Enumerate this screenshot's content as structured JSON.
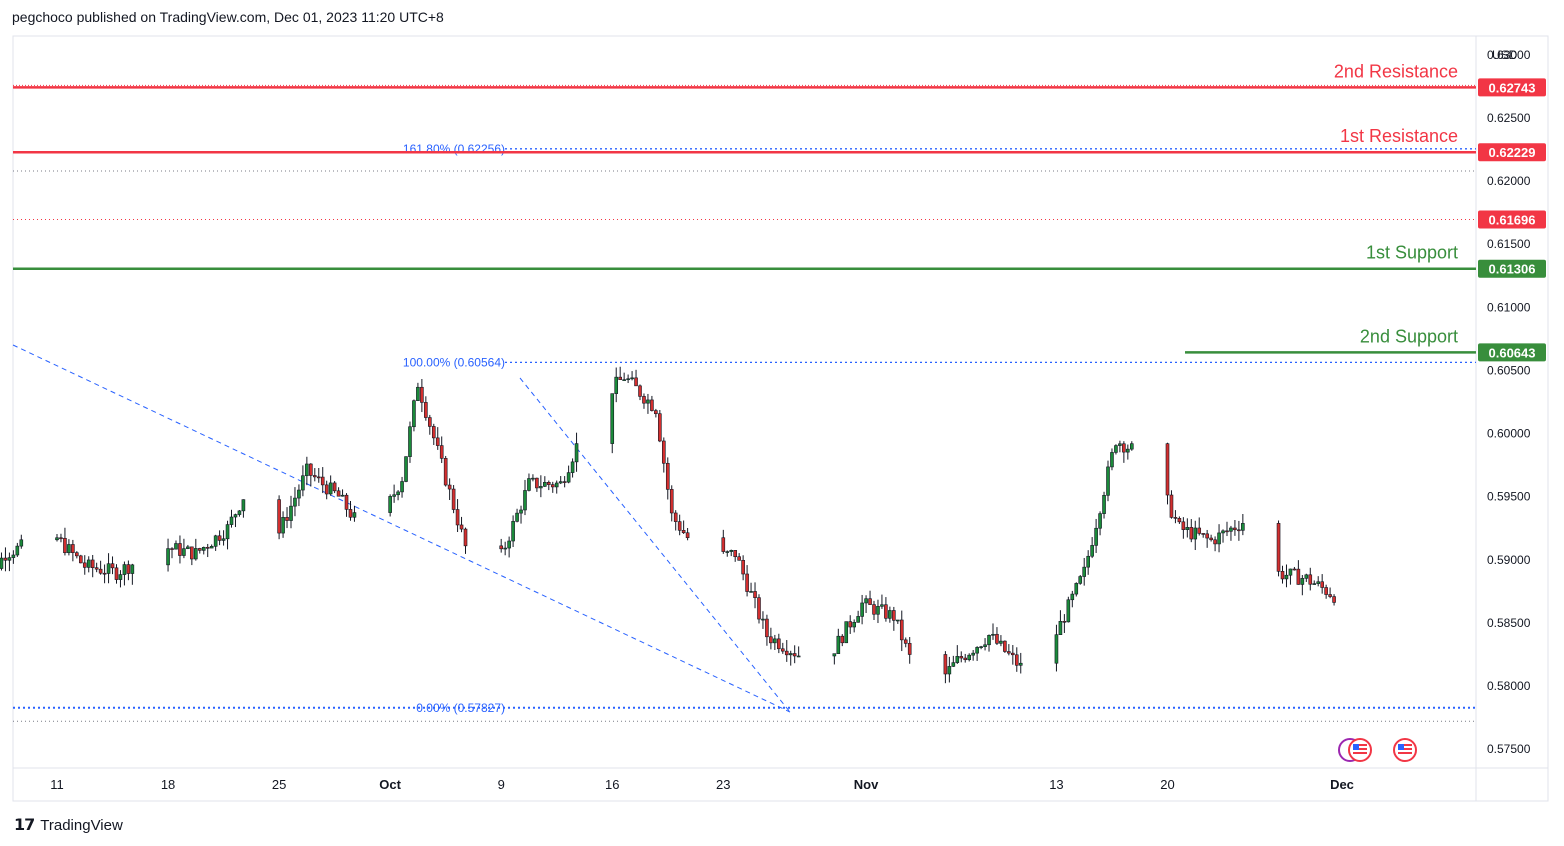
{
  "header": {
    "text": "pegchoco published on TradingView.com, Dec 01, 2023 11:20 UTC+8"
  },
  "footer": {
    "brand": "TradingView",
    "logo_icon": "tradingview-logo-icon"
  },
  "chart_data": {
    "type": "candlestick",
    "currency": "USD",
    "ylim": [
      0.5735,
      0.6315
    ],
    "y_ticks": [
      "0.63000",
      "0.62500",
      "0.62000",
      "0.61500",
      "0.61000",
      "0.60500",
      "0.60000",
      "0.59500",
      "0.59000",
      "0.58500",
      "0.58000",
      "0.57500"
    ],
    "y_tick_values": [
      0.63,
      0.625,
      0.62,
      0.615,
      0.61,
      0.605,
      0.6,
      0.595,
      0.59,
      0.585,
      0.58,
      0.575
    ],
    "x_ticks": [
      {
        "label": "11",
        "date": "2023-09-11",
        "bold": false
      },
      {
        "label": "18",
        "date": "2023-09-18",
        "bold": false
      },
      {
        "label": "25",
        "date": "2023-09-25",
        "bold": false
      },
      {
        "label": "Oct",
        "date": "2023-10-02",
        "bold": true
      },
      {
        "label": "9",
        "date": "2023-10-09",
        "bold": false
      },
      {
        "label": "16",
        "date": "2023-10-16",
        "bold": false
      },
      {
        "label": "23",
        "date": "2023-10-23",
        "bold": false
      },
      {
        "label": "Nov",
        "date": "2023-11-01",
        "bold": true
      },
      {
        "label": "13",
        "date": "2023-11-13",
        "bold": false
      },
      {
        "label": "20",
        "date": "2023-11-20",
        "bold": false
      },
      {
        "label": "Dec",
        "date": "2023-12-01",
        "bold": true
      }
    ],
    "levels": [
      {
        "name": "2nd Resistance",
        "value": 0.62743,
        "label": "0.62743",
        "color": "#f23645"
      },
      {
        "name": "1st Resistance",
        "value": 0.62229,
        "label": "0.62229",
        "color": "#f23645"
      },
      {
        "name": "1st Support",
        "value": 0.61306,
        "label": "0.61306",
        "color": "#388e3c"
      },
      {
        "name": "2nd Support",
        "value": 0.60643,
        "label": "0.60643",
        "color": "#388e3c"
      }
    ],
    "current_price": {
      "value": 0.61696,
      "label": "0.61696",
      "color": "#f23645"
    },
    "fibonacci": [
      {
        "label": "161.80% (0.62256)",
        "value": 0.62256
      },
      {
        "label": "100.00% (0.60564)",
        "value": 0.60564
      },
      {
        "label": "0.00% (0.57827)",
        "value": 0.57827
      }
    ],
    "session_high": 0.6208,
    "session_low": 0.5772,
    "waypoints": [
      [
        "2023-09-06",
        0.587
      ],
      [
        "2023-09-08",
        0.5905
      ],
      [
        "2023-09-11",
        0.592
      ],
      [
        "2023-09-13",
        0.5895
      ],
      [
        "2023-09-15",
        0.589
      ],
      [
        "2023-09-18",
        0.591
      ],
      [
        "2023-09-20",
        0.5905
      ],
      [
        "2023-09-22",
        0.5925
      ],
      [
        "2023-09-24",
        0.5975
      ],
      [
        "2023-09-25",
        0.5915
      ],
      [
        "2023-09-27",
        0.597
      ],
      [
        "2023-09-29",
        0.595
      ],
      [
        "2023-10-01",
        0.5915
      ],
      [
        "2023-10-03",
        0.5965
      ],
      [
        "2023-10-04",
        0.604
      ],
      [
        "2023-10-07",
        0.591
      ],
      [
        "2023-10-09",
        0.5895
      ],
      [
        "2023-10-11",
        0.596
      ],
      [
        "2023-10-13",
        0.596
      ],
      [
        "2023-10-15",
        0.602
      ],
      [
        "2023-10-17",
        0.6045
      ],
      [
        "2023-10-19",
        0.602
      ],
      [
        "2023-10-20",
        0.5935
      ],
      [
        "2023-10-22",
        0.59
      ],
      [
        "2023-10-24",
        0.5905
      ],
      [
        "2023-10-26",
        0.584
      ],
      [
        "2023-10-28",
        0.5825
      ],
      [
        "2023-10-30",
        0.5825
      ],
      [
        "2023-11-01",
        0.5865
      ],
      [
        "2023-11-03",
        0.5855
      ],
      [
        "2023-11-05",
        0.579
      ],
      [
        "2023-11-07",
        0.582
      ],
      [
        "2023-11-09",
        0.584
      ],
      [
        "2023-11-11",
        0.5815
      ],
      [
        "2023-11-13",
        0.5835
      ],
      [
        "2023-11-15",
        0.589
      ],
      [
        "2023-11-17",
        0.5995
      ],
      [
        "2023-11-19",
        0.598
      ],
      [
        "2023-11-21",
        0.5925
      ],
      [
        "2023-11-23",
        0.5915
      ],
      [
        "2023-11-25",
        0.593
      ],
      [
        "2023-11-27",
        0.589
      ],
      [
        "2023-11-29",
        0.5885
      ],
      [
        "2023-12-01",
        0.587
      ],
      [
        "2023-12-03",
        0.59
      ]
    ]
  }
}
